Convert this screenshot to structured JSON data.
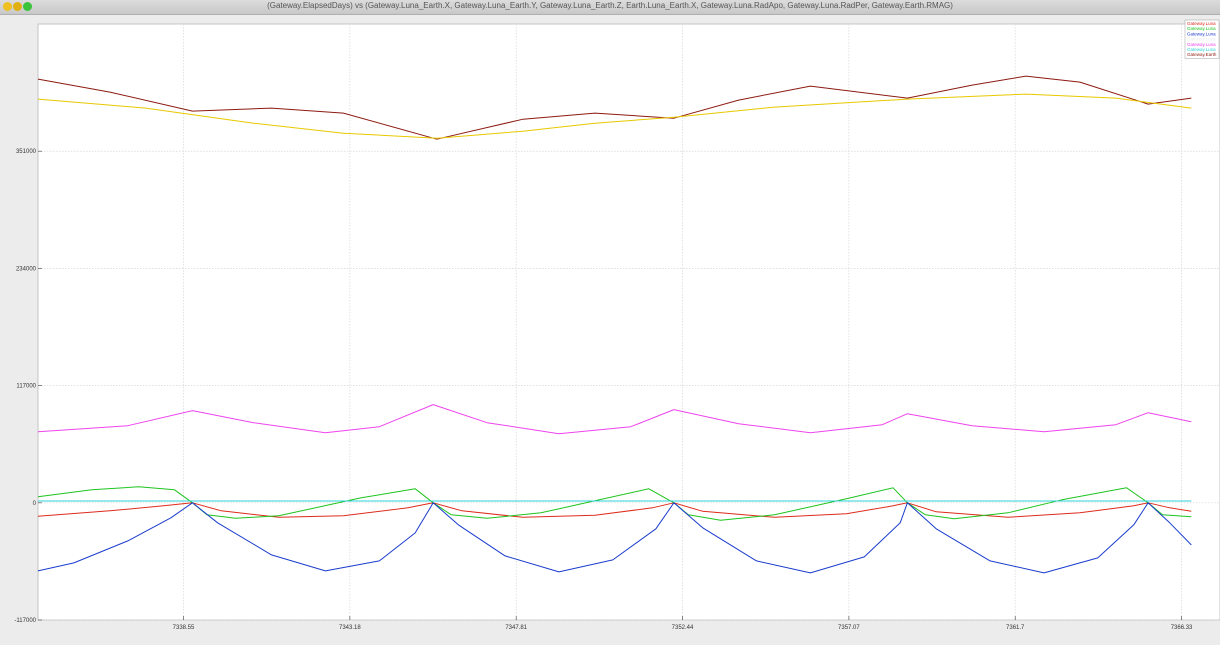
{
  "window": {
    "title": "(Gateway.ElapsedDays) vs (Gateway.Luna_Earth.X, Gateway.Luna_Earth.Y, Gateway.Luna_Earth.Z, Earth.Luna_Earth.X, Gateway.Luna.RadApo, Gateway.Luna.RadPer, Gateway.Earth.RMAG)"
  },
  "chart_data": {
    "type": "line",
    "title": "(Gateway.ElapsedDays) vs (Gateway.Luna_Earth.X, Gateway.Luna_Earth.Y, Gateway.Luna_Earth.Z, Earth.Luna_Earth.X, Gateway.Luna.RadApo, Gateway.Luna.RadPer, Gateway.Earth.RMAG)",
    "xlim": [
      7334.5,
      7367.4
    ],
    "ylim": [
      -117000,
      478000
    ],
    "xticks": [
      "7338.55",
      "7343.18",
      "7347.81",
      "7352.44",
      "7357.07",
      "7361.7",
      "7366.33"
    ],
    "xtick_values": [
      7338.55,
      7343.18,
      7347.81,
      7352.44,
      7357.07,
      7361.7,
      7366.33
    ],
    "yticks": [
      "-117000",
      "0",
      "117000",
      "234000",
      "351000"
    ],
    "ytick_values": [
      -117000,
      0,
      117000,
      234000,
      351000
    ],
    "grid": true,
    "legend_position": "top-right",
    "series": [
      {
        "name": "Gateway.Luna",
        "color": "#dd2b1c",
        "points": [
          [
            7334.5,
            -13500
          ],
          [
            7336.5,
            -8000
          ],
          [
            7338.0,
            -3000
          ],
          [
            7338.8,
            0
          ],
          [
            7339.6,
            -8000
          ],
          [
            7341.2,
            -14500
          ],
          [
            7343.0,
            -13000
          ],
          [
            7344.8,
            -5000
          ],
          [
            7345.5,
            0
          ],
          [
            7346.3,
            -8000
          ],
          [
            7348.0,
            -14500
          ],
          [
            7350.0,
            -12500
          ],
          [
            7351.6,
            -5000
          ],
          [
            7352.2,
            0
          ],
          [
            7353.0,
            -8500
          ],
          [
            7355.0,
            -14500
          ],
          [
            7357.0,
            -11000
          ],
          [
            7358.3,
            -3000
          ],
          [
            7358.7,
            0
          ],
          [
            7359.5,
            -9000
          ],
          [
            7361.5,
            -14500
          ],
          [
            7363.5,
            -10000
          ],
          [
            7365.0,
            -3000
          ],
          [
            7365.4,
            0
          ],
          [
            7366.0,
            -5000
          ],
          [
            7366.6,
            -8500
          ]
        ]
      },
      {
        "name": "Gateway.Luna",
        "color": "#1ec41e",
        "points": [
          [
            7334.5,
            6000
          ],
          [
            7336.0,
            13000
          ],
          [
            7337.3,
            16000
          ],
          [
            7338.3,
            13000
          ],
          [
            7338.8,
            0
          ],
          [
            7339.2,
            -12000
          ],
          [
            7340.0,
            -15500
          ],
          [
            7341.2,
            -13000
          ],
          [
            7343.5,
            5000
          ],
          [
            7345.0,
            14000
          ],
          [
            7345.5,
            0
          ],
          [
            7346.0,
            -12000
          ],
          [
            7347.0,
            -15500
          ],
          [
            7348.5,
            -10000
          ],
          [
            7350.0,
            2000
          ],
          [
            7351.5,
            14000
          ],
          [
            7352.2,
            0
          ],
          [
            7352.6,
            -12000
          ],
          [
            7353.5,
            -17500
          ],
          [
            7355.0,
            -12000
          ],
          [
            7357.0,
            4000
          ],
          [
            7358.3,
            15000
          ],
          [
            7358.7,
            0
          ],
          [
            7359.2,
            -12000
          ],
          [
            7360.0,
            -16000
          ],
          [
            7361.5,
            -10000
          ],
          [
            7363.0,
            3000
          ],
          [
            7364.8,
            15000
          ],
          [
            7365.4,
            0
          ],
          [
            7365.8,
            -12000
          ],
          [
            7366.6,
            -14000
          ]
        ]
      },
      {
        "name": "Gateway.Luna",
        "color": "#1a3ccd",
        "points": [
          [
            7334.5,
            -68000
          ],
          [
            7335.5,
            -60000
          ],
          [
            7337.0,
            -38000
          ],
          [
            7338.2,
            -15000
          ],
          [
            7338.8,
            0
          ],
          [
            7339.5,
            -20000
          ],
          [
            7341.0,
            -52000
          ],
          [
            7342.5,
            -68000
          ],
          [
            7344.0,
            -58000
          ],
          [
            7345.0,
            -30000
          ],
          [
            7345.5,
            0
          ],
          [
            7346.2,
            -22000
          ],
          [
            7347.5,
            -53000
          ],
          [
            7349.0,
            -69000
          ],
          [
            7350.5,
            -57000
          ],
          [
            7351.7,
            -26000
          ],
          [
            7352.2,
            0
          ],
          [
            7353.0,
            -25000
          ],
          [
            7354.5,
            -58000
          ],
          [
            7356.0,
            -70000
          ],
          [
            7357.5,
            -54000
          ],
          [
            7358.5,
            -20000
          ],
          [
            7358.7,
            0
          ],
          [
            7359.5,
            -26000
          ],
          [
            7361.0,
            -58000
          ],
          [
            7362.5,
            -70000
          ],
          [
            7364.0,
            -55000
          ],
          [
            7365.0,
            -22000
          ],
          [
            7365.4,
            0
          ],
          [
            7366.0,
            -20000
          ],
          [
            7366.6,
            -42000
          ]
        ]
      },
      {
        "name": "Gateway.Luna",
        "color": "#ececec",
        "points": []
      },
      {
        "name": "Gateway.Luna",
        "color": "#ee44ee",
        "points": [
          [
            7334.5,
            71000
          ],
          [
            7337.0,
            77000
          ],
          [
            7338.8,
            92000
          ],
          [
            7340.5,
            80000
          ],
          [
            7342.5,
            70000
          ],
          [
            7344.0,
            76000
          ],
          [
            7345.5,
            98000
          ],
          [
            7347.0,
            80000
          ],
          [
            7349.0,
            69000
          ],
          [
            7351.0,
            76000
          ],
          [
            7352.2,
            93000
          ],
          [
            7354.0,
            79000
          ],
          [
            7356.0,
            70000
          ],
          [
            7358.0,
            78000
          ],
          [
            7358.7,
            89000
          ],
          [
            7360.5,
            77000
          ],
          [
            7362.5,
            71000
          ],
          [
            7364.5,
            78000
          ],
          [
            7365.4,
            90000
          ],
          [
            7366.6,
            81000
          ]
        ]
      },
      {
        "name": "Gateway.Luna",
        "color": "#2ed0d8",
        "points": [
          [
            7334.5,
            1800
          ],
          [
            7366.6,
            1800
          ]
        ]
      },
      {
        "name": "Gateway.Earth",
        "color": "#8c1a10",
        "points": [
          [
            7334.5,
            423000
          ],
          [
            7336.5,
            410000
          ],
          [
            7338.8,
            391000
          ],
          [
            7341.0,
            394000
          ],
          [
            7343.0,
            389000
          ],
          [
            7345.6,
            363000
          ],
          [
            7348.0,
            383000
          ],
          [
            7350.0,
            389000
          ],
          [
            7352.2,
            384000
          ],
          [
            7354.0,
            402000
          ],
          [
            7356.0,
            416000
          ],
          [
            7358.7,
            404000
          ],
          [
            7360.5,
            417000
          ],
          [
            7362.0,
            426000
          ],
          [
            7363.5,
            420000
          ],
          [
            7365.4,
            398000
          ],
          [
            7366.6,
            404000
          ]
        ]
      },
      {
        "name": "",
        "color": "#e8c800",
        "points": [
          [
            7334.5,
            403000
          ],
          [
            7337.5,
            394000
          ],
          [
            7340.5,
            379000
          ],
          [
            7343.0,
            369000
          ],
          [
            7345.6,
            364000
          ],
          [
            7348.0,
            371000
          ],
          [
            7350.0,
            379000
          ],
          [
            7352.2,
            385000
          ],
          [
            7355.0,
            395000
          ],
          [
            7358.7,
            403000
          ],
          [
            7362.0,
            408000
          ],
          [
            7364.5,
            404000
          ],
          [
            7366.6,
            394000
          ]
        ]
      }
    ]
  }
}
